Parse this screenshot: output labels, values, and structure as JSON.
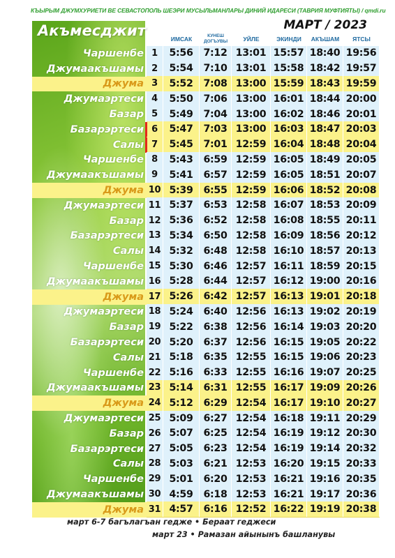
{
  "header_text": "КЪЫРЫМ ДЖУМХУРИЕТИ ВЕ СЕВАСТОПОЛЬ ШЕЭРИ МУСЫЛЬМАНЛАРЫ ДИНИЙ ИДАРЕСИ (ТАВРИЯ МУФТИЯТЫ)  /  qmdi.ru",
  "month_title": "МАРТ / 2023",
  "city": "Акъмесджит",
  "columns": [
    "ИМСАК",
    "КУНЕШ ДОГЪУВЫ",
    "УЙЛЕ",
    "ЭКИНДИ",
    "АКЪШАМ",
    "ЯТСЫ"
  ],
  "rows": [
    {
      "name": "Чаршенбе",
      "day": "1",
      "t": [
        "5:56",
        "7:12",
        "13:01",
        "15:57",
        "18:40",
        "19:56"
      ],
      "juma": false,
      "hl": false,
      "mark": false
    },
    {
      "name": "Джумаакъшамы",
      "day": "2",
      "t": [
        "5:54",
        "7:10",
        "13:01",
        "15:58",
        "18:42",
        "19:57"
      ],
      "juma": false,
      "hl": false,
      "mark": false
    },
    {
      "name": "Джума",
      "day": "3",
      "t": [
        "5:52",
        "7:08",
        "13:00",
        "15:59",
        "18:43",
        "19:59"
      ],
      "juma": true,
      "hl": true,
      "mark": false
    },
    {
      "name": "Джумаэртеси",
      "day": "4",
      "t": [
        "5:50",
        "7:06",
        "13:00",
        "16:01",
        "18:44",
        "20:00"
      ],
      "juma": false,
      "hl": false,
      "mark": false
    },
    {
      "name": "Базар",
      "day": "5",
      "t": [
        "5:49",
        "7:04",
        "13:00",
        "16:02",
        "18:46",
        "20:01"
      ],
      "juma": false,
      "hl": false,
      "mark": false
    },
    {
      "name": "Базарэртеси",
      "day": "6",
      "t": [
        "5:47",
        "7:03",
        "13:00",
        "16:03",
        "18:47",
        "20:03"
      ],
      "juma": false,
      "hl": true,
      "mark": true
    },
    {
      "name": "Салы",
      "day": "7",
      "t": [
        "5:45",
        "7:01",
        "12:59",
        "16:04",
        "18:48",
        "20:04"
      ],
      "juma": false,
      "hl": true,
      "mark": true
    },
    {
      "name": "Чаршенбе",
      "day": "8",
      "t": [
        "5:43",
        "6:59",
        "12:59",
        "16:05",
        "18:49",
        "20:05"
      ],
      "juma": false,
      "hl": false,
      "mark": false
    },
    {
      "name": "Джумаакъшамы",
      "day": "9",
      "t": [
        "5:41",
        "6:57",
        "12:59",
        "16:05",
        "18:51",
        "20:07"
      ],
      "juma": false,
      "hl": false,
      "mark": false
    },
    {
      "name": "Джума",
      "day": "10",
      "t": [
        "5:39",
        "6:55",
        "12:59",
        "16:06",
        "18:52",
        "20:08"
      ],
      "juma": true,
      "hl": true,
      "mark": false
    },
    {
      "name": "Джумаэртеси",
      "day": "11",
      "t": [
        "5:37",
        "6:53",
        "12:58",
        "16:07",
        "18:53",
        "20:09"
      ],
      "juma": false,
      "hl": false,
      "mark": false
    },
    {
      "name": "Базар",
      "day": "12",
      "t": [
        "5:36",
        "6:52",
        "12:58",
        "16:08",
        "18:55",
        "20:11"
      ],
      "juma": false,
      "hl": false,
      "mark": false
    },
    {
      "name": "Базарэртеси",
      "day": "13",
      "t": [
        "5:34",
        "6:50",
        "12:58",
        "16:09",
        "18:56",
        "20:12"
      ],
      "juma": false,
      "hl": false,
      "mark": false
    },
    {
      "name": "Салы",
      "day": "14",
      "t": [
        "5:32",
        "6:48",
        "12:58",
        "16:10",
        "18:57",
        "20:13"
      ],
      "juma": false,
      "hl": false,
      "mark": false
    },
    {
      "name": "Чаршенбе",
      "day": "15",
      "t": [
        "5:30",
        "6:46",
        "12:57",
        "16:11",
        "18:59",
        "20:15"
      ],
      "juma": false,
      "hl": false,
      "mark": false
    },
    {
      "name": "Джумаакъшамы",
      "day": "16",
      "t": [
        "5:28",
        "6:44",
        "12:57",
        "16:12",
        "19:00",
        "20:16"
      ],
      "juma": false,
      "hl": false,
      "mark": false
    },
    {
      "name": "Джума",
      "day": "17",
      "t": [
        "5:26",
        "6:42",
        "12:57",
        "16:13",
        "19:01",
        "20:18"
      ],
      "juma": true,
      "hl": true,
      "mark": false
    },
    {
      "name": "Джумаэртеси",
      "day": "18",
      "t": [
        "5:24",
        "6:40",
        "12:56",
        "16:13",
        "19:02",
        "20:19"
      ],
      "juma": false,
      "hl": false,
      "mark": false
    },
    {
      "name": "Базар",
      "day": "19",
      "t": [
        "5:22",
        "6:38",
        "12:56",
        "16:14",
        "19:03",
        "20:20"
      ],
      "juma": false,
      "hl": false,
      "mark": false
    },
    {
      "name": "Базарэртеси",
      "day": "20",
      "t": [
        "5:20",
        "6:37",
        "12:56",
        "16:15",
        "19:05",
        "20:22"
      ],
      "juma": false,
      "hl": false,
      "mark": false
    },
    {
      "name": "Салы",
      "day": "21",
      "t": [
        "5:18",
        "6:35",
        "12:55",
        "16:15",
        "19:06",
        "20:23"
      ],
      "juma": false,
      "hl": false,
      "mark": false
    },
    {
      "name": "Чаршенбе",
      "day": "22",
      "t": [
        "5:16",
        "6:33",
        "12:55",
        "16:16",
        "19:07",
        "20:25"
      ],
      "juma": false,
      "hl": false,
      "mark": false
    },
    {
      "name": "Джумаакъшамы",
      "day": "23",
      "t": [
        "5:14",
        "6:31",
        "12:55",
        "16:17",
        "19:09",
        "20:26"
      ],
      "juma": false,
      "hl": true,
      "mark": false
    },
    {
      "name": "Джума",
      "day": "24",
      "t": [
        "5:12",
        "6:29",
        "12:54",
        "16:17",
        "19:10",
        "20:27"
      ],
      "juma": true,
      "hl": true,
      "mark": false
    },
    {
      "name": "Джумаэртеси",
      "day": "25",
      "t": [
        "5:09",
        "6:27",
        "12:54",
        "16:18",
        "19:11",
        "20:29"
      ],
      "juma": false,
      "hl": false,
      "mark": false
    },
    {
      "name": "Базар",
      "day": "26",
      "t": [
        "5:07",
        "6:25",
        "12:54",
        "16:19",
        "19:12",
        "20:30"
      ],
      "juma": false,
      "hl": false,
      "mark": false
    },
    {
      "name": "Базарэртеси",
      "day": "27",
      "t": [
        "5:05",
        "6:23",
        "12:54",
        "16:19",
        "19:14",
        "20:32"
      ],
      "juma": false,
      "hl": false,
      "mark": false
    },
    {
      "name": "Салы",
      "day": "28",
      "t": [
        "5:03",
        "6:21",
        "12:53",
        "16:20",
        "19:15",
        "20:33"
      ],
      "juma": false,
      "hl": false,
      "mark": false
    },
    {
      "name": "Чаршенбе",
      "day": "29",
      "t": [
        "5:01",
        "6:20",
        "12:53",
        "16:21",
        "19:16",
        "20:35"
      ],
      "juma": false,
      "hl": false,
      "mark": false
    },
    {
      "name": "Джумаакъшамы",
      "day": "30",
      "t": [
        "4:59",
        "6:18",
        "12:53",
        "16:21",
        "19:17",
        "20:36"
      ],
      "juma": false,
      "hl": false,
      "mark": false
    },
    {
      "name": "Джума",
      "day": "31",
      "t": [
        "4:57",
        "6:16",
        "12:52",
        "16:22",
        "19:19",
        "20:38"
      ],
      "juma": true,
      "hl": true,
      "mark": false
    }
  ],
  "footer": {
    "line1": "март 6-7 багълагъан гедже • Бераат геджеси",
    "line2": "март 23 • Рамазан айынынъ башланувы"
  },
  "colors": {
    "highlight": "#fbf28a",
    "cell_bg": "#dff1fb",
    "juma_text": "#d99a1a",
    "header_green": "#2f9e2f",
    "mark_red": "#e4281c"
  }
}
